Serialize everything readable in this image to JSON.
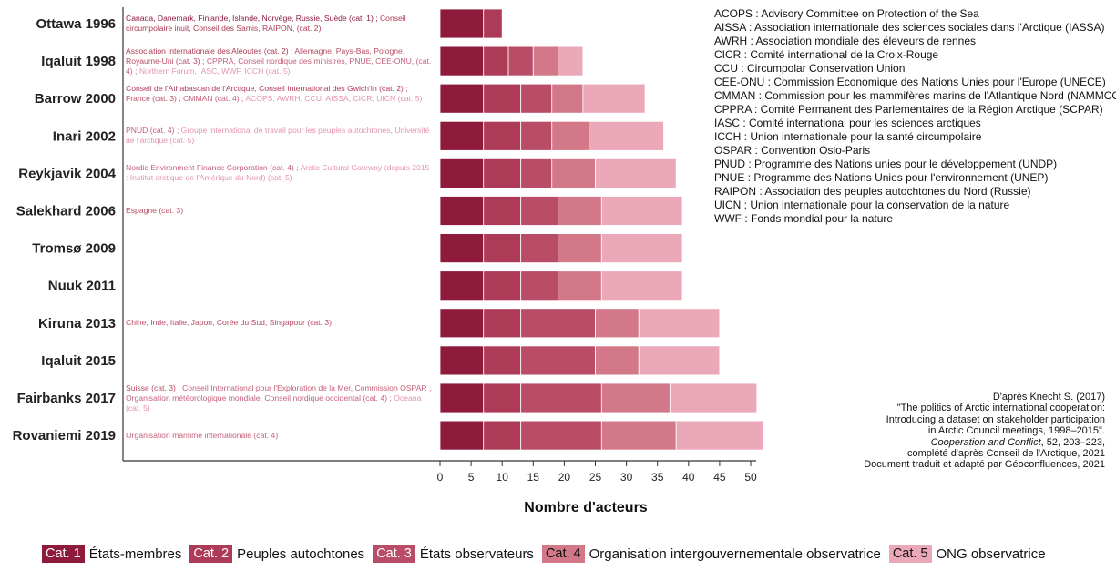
{
  "chart_data": {
    "type": "bar",
    "orientation": "horizontal",
    "stacked": true,
    "categories": [
      "Ottawa 1996",
      "Iqaluit 1998",
      "Barrow 2000",
      "Inari 2002",
      "Reykjavik 2004",
      "Salekhard 2006",
      "Tromsø 2009",
      "Nuuk 2011",
      "Kiruna 2013",
      "Iqaluit 2015",
      "Fairbanks 2017",
      "Rovaniemi 2019"
    ],
    "series": [
      {
        "name": "Cat. 1",
        "label": "États-membres",
        "color": "#8e1a3c",
        "values": [
          7,
          7,
          7,
          7,
          7,
          7,
          7,
          7,
          7,
          7,
          7,
          7
        ]
      },
      {
        "name": "Cat. 2",
        "label": "Peuples autochtones",
        "color": "#ad3a56",
        "values": [
          3,
          4,
          6,
          6,
          6,
          6,
          6,
          6,
          6,
          6,
          6,
          6
        ]
      },
      {
        "name": "Cat. 3",
        "label": "États observateurs",
        "color": "#b94c66",
        "values": [
          0,
          4,
          5,
          5,
          5,
          6,
          6,
          6,
          12,
          12,
          13,
          13
        ]
      },
      {
        "name": "Cat. 4",
        "label": "Organisation intergouvernementale observatrice",
        "color": "#d27888",
        "values": [
          0,
          4,
          5,
          6,
          7,
          7,
          7,
          7,
          7,
          7,
          11,
          12
        ]
      },
      {
        "name": "Cat. 5",
        "label": "ONG observatrice",
        "color": "#eaa8b8",
        "values": [
          0,
          4,
          10,
          12,
          13,
          13,
          13,
          13,
          13,
          13,
          14,
          14
        ]
      }
    ],
    "xlabel": "Nombre d'acteurs",
    "xlim": [
      0,
      52
    ],
    "xticks": [
      0,
      5,
      10,
      15,
      20,
      25,
      30,
      35,
      40,
      45,
      50
    ]
  },
  "notes": [
    [
      {
        "text": "Canada, Danemark, Finlande, Islande, Norvège, Russie, Suède (cat. 1) ; ",
        "color": "#8e1a3c"
      },
      {
        "text": "Conseil circumpolaire inuit, Conseil des Samis, RAIPON, (cat. 2)",
        "color": "#ad3a56"
      }
    ],
    [
      {
        "text": "Association internationale des Aléoutes (cat. 2) ; ",
        "color": "#ad3a56"
      },
      {
        "text": "Allemagne, Pays-Bas, Pologne, Royaume-Uni (cat. 3) ; ",
        "color": "#b94c66"
      },
      {
        "text": "CPPRA, Conseil nordique des ministres, PNUE, CEE-ONU, (cat. 4) ; ",
        "color": "#c4607a"
      },
      {
        "text": "Northern Forum, IASC, WWF, ICCH (cat. 5)",
        "color": "#e394aa"
      }
    ],
    [
      {
        "text": "Conseil de l'Athabascan de l'Arctique, Conseil International des Gwich'In (cat. 2) ; ",
        "color": "#ad3a56"
      },
      {
        "text": "France (cat. 3) ; ",
        "color": "#b94c66"
      },
      {
        "text": "CMMAN (cat. 4) ; ",
        "color": "#c4607a"
      },
      {
        "text": "ACOPS, AWRH, CCU, AISSA, CICR, UICN (cat. 5)",
        "color": "#e394aa"
      }
    ],
    [
      {
        "text": "PNUD (cat. 4) ; ",
        "color": "#c4607a"
      },
      {
        "text": "Groupe international de travail pour les peuples autochtones, Université de l'arctique (cat. 5)",
        "color": "#e394aa"
      }
    ],
    [
      {
        "text": "Nordic Environment Finance Corporation (cat. 4) ; ",
        "color": "#c4607a"
      },
      {
        "text": "Arctic Cultural Gateway (depuis 2015 : Institut arctique de l'Amérique du Nord) (cat. 5)",
        "color": "#e394aa"
      }
    ],
    [
      {
        "text": "Espagne (cat. 3)",
        "color": "#b94c66"
      }
    ],
    [],
    [],
    [
      {
        "text": "Chine, Inde, Italie, Japon, Corée du Sud, Singapour (cat. 3)",
        "color": "#b94c66"
      }
    ],
    [],
    [
      {
        "text": "Suisse (cat. 3) ; ",
        "color": "#b94c66"
      },
      {
        "text": "Conseil International pour l'Exploration de la Mer, Commission OSPAR , Organisation météorologique mondiale, Conseil nordique occidental (cat. 4) ; ",
        "color": "#c4607a"
      },
      {
        "text": "Oceana (cat. 5)",
        "color": "#e394aa"
      }
    ],
    [
      {
        "text": "Organisation maritime internationale (cat. 4)",
        "color": "#c4607a"
      }
    ]
  ],
  "abbreviations": [
    "ACOPS : Advisory Committee on Protection of the Sea",
    "AISSA : Association internationale des sciences sociales dans l'Arctique (IASSA)",
    "AWRH : Association mondiale des éleveurs de rennes",
    "CICR : Comité international de la Croix-Rouge",
    "CCU : Circumpolar Conservation Union",
    "CEE-ONU : Commission Economique des Nations Unies pour l'Europe (UNECE)",
    "CMMAN : Commission pour les mammifères marins de l'Atlantique Nord (NAMMCO)",
    "CPPRA : Comité Permanent des Parlementaires de la Région Arctique (SCPAR)",
    "IASC : Comité international pour les sciences arctiques",
    "ICCH : Union internationale pour la santé circumpolaire",
    "OSPAR : Convention Oslo-Paris",
    "PNUD : Programme des Nations unies pour le développement (UNDP)",
    "PNUE : Programme des Nations Unies pour l'environnement (UNEP)",
    "RAIPON : Association des peuples autochtones du Nord (Russie)",
    "UICN : Union internationale pour la conservation de la nature",
    "WWF : Fonds mondial pour la nature"
  ],
  "source": {
    "line1": "D'après Knecht S. (2017)",
    "line2": "\"The politics of Arctic international cooperation:",
    "line3": "Introducing a dataset on stakeholder participation",
    "line4": "in Arctic Council meetings, 1998–2015\".",
    "journal": "Cooperation and Conflict",
    "ref": ", 52, 203–223,",
    "line6": "complété d'après Conseil de l'Arctique, 2021",
    "line7": "Document traduit et adapté par Géoconfluences, 2021"
  },
  "legend": [
    {
      "cat": "Cat. 1",
      "label": "États-membres",
      "color": "#8e1a3c"
    },
    {
      "cat": "Cat. 2",
      "label": "Peuples autochtones",
      "color": "#ad3a56"
    },
    {
      "cat": "Cat. 3",
      "label": "États observateurs",
      "color": "#b94c66"
    },
    {
      "cat": "Cat. 4",
      "label": "Organisation intergouvernementale observatrice",
      "color": "#d27888"
    },
    {
      "cat": "Cat. 5",
      "label": "ONG observatrice",
      "color": "#eaa8b8"
    }
  ]
}
